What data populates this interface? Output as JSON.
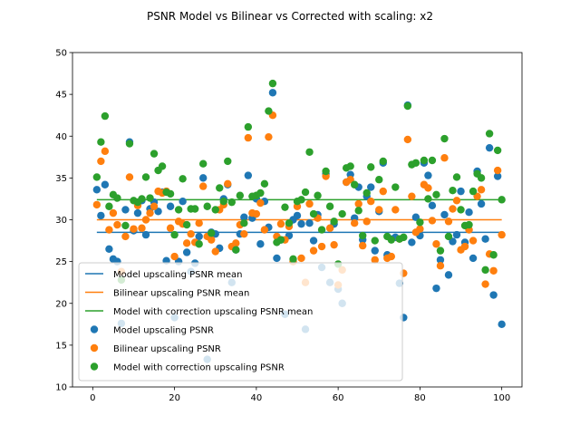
{
  "chart_data": {
    "type": "scatter",
    "title": "PSNR Model vs Bilinear vs Corrected with scaling: x2",
    "xlabel": "",
    "ylabel": "",
    "xlim": [
      -4.95,
      104.95
    ],
    "ylim": [
      10,
      50
    ],
    "xticks": [
      0,
      20,
      40,
      60,
      80,
      100
    ],
    "yticks": [
      10,
      15,
      20,
      25,
      30,
      35,
      40,
      45,
      50
    ],
    "grid": false,
    "legend_position": "lower-left",
    "lines": [
      {
        "name": "Model upscaling PSNR mean",
        "value": 28.5,
        "x_range": [
          1,
          100
        ],
        "color": "#1f77b4"
      },
      {
        "name": "Bilinear upscaling PSNR mean",
        "value": 30.0,
        "x_range": [
          1,
          100
        ],
        "color": "#ff7f0e"
      },
      {
        "name": "Model with correction upscaling PSNR mean",
        "value": 32.4,
        "x_range": [
          1,
          100
        ],
        "color": "#2ca02c"
      }
    ],
    "series": [
      {
        "name": "Model upscaling PSNR",
        "color": "#1f77b4",
        "x": [
          1,
          2,
          3,
          4,
          5,
          6,
          7,
          8,
          9,
          10,
          11,
          12,
          13,
          14,
          15,
          16,
          17,
          18,
          19,
          20,
          21,
          22,
          23,
          24,
          25,
          26,
          27,
          28,
          29,
          30,
          31,
          32,
          33,
          34,
          35,
          36,
          37,
          38,
          39,
          40,
          41,
          42,
          43,
          44,
          45,
          46,
          47,
          48,
          49,
          50,
          51,
          52,
          53,
          54,
          55,
          56,
          57,
          58,
          59,
          60,
          61,
          62,
          63,
          64,
          65,
          66,
          67,
          68,
          69,
          70,
          71,
          72,
          73,
          74,
          75,
          76,
          77,
          78,
          79,
          80,
          81,
          82,
          83,
          84,
          85,
          86,
          87,
          88,
          89,
          90,
          91,
          92,
          93,
          94,
          95,
          96,
          97,
          98,
          99,
          100
        ],
        "y": [
          33.6,
          30.5,
          34.2,
          26.5,
          25.3,
          25.0,
          17.6,
          31.2,
          39.3,
          28.7,
          30.8,
          32.3,
          28.2,
          31.3,
          32.1,
          31.0,
          33.3,
          25.1,
          31.6,
          18.3,
          25.0,
          32.2,
          26.1,
          23.8,
          24.8,
          28.0,
          35.0,
          13.3,
          28.5,
          28.3,
          26.6,
          32.5,
          34.2,
          22.5,
          26.4,
          28.3,
          30.3,
          35.3,
          30.2,
          32.5,
          27.1,
          32.2,
          29.1,
          45.2,
          25.4,
          27.6,
          18.7,
          28.1,
          30.0,
          30.5,
          29.5,
          16.9,
          29.6,
          27.5,
          30.6,
          24.3,
          35.5,
          22.5,
          29.5,
          21.7,
          20.0,
          34.5,
          35.4,
          30.2,
          33.9,
          27.6,
          32.8,
          33.9,
          26.3,
          31.0,
          36.8,
          25.8,
          27.7,
          27.9,
          22.4,
          18.3,
          43.7,
          27.3,
          30.3,
          28.1,
          36.8,
          35.3,
          31.7,
          21.8,
          25.2,
          30.6,
          23.4,
          27.4,
          28.2,
          33.4,
          27.3,
          30.9,
          25.4,
          35.8,
          31.9,
          27.7,
          38.6,
          21.0,
          35.2,
          17.5
        ]
      },
      {
        "name": "Bilinear upscaling PSNR",
        "color": "#ff7f0e",
        "x": [
          1,
          2,
          3,
          4,
          5,
          6,
          7,
          8,
          9,
          10,
          11,
          12,
          13,
          14,
          15,
          16,
          17,
          18,
          19,
          20,
          21,
          22,
          23,
          24,
          25,
          26,
          27,
          28,
          29,
          30,
          31,
          32,
          33,
          34,
          35,
          36,
          37,
          38,
          39,
          40,
          41,
          42,
          43,
          44,
          45,
          46,
          47,
          48,
          49,
          50,
          51,
          52,
          53,
          54,
          55,
          56,
          57,
          58,
          59,
          60,
          61,
          62,
          63,
          64,
          65,
          66,
          67,
          68,
          69,
          70,
          71,
          72,
          73,
          74,
          75,
          76,
          77,
          78,
          79,
          80,
          81,
          82,
          83,
          84,
          85,
          86,
          87,
          88,
          89,
          90,
          91,
          92,
          93,
          94,
          95,
          96,
          97,
          98,
          99,
          100
        ],
        "y": [
          31.8,
          37.0,
          38.2,
          28.8,
          30.8,
          29.4,
          23.8,
          28.0,
          35.1,
          28.9,
          31.7,
          29.0,
          30.0,
          30.8,
          31.6,
          33.4,
          33.2,
          33.4,
          29.0,
          25.6,
          29.8,
          29.5,
          27.2,
          28.3,
          27.3,
          29.6,
          34.0,
          28.0,
          27.6,
          26.2,
          31.2,
          31.8,
          34.3,
          26.8,
          27.2,
          29.4,
          28.3,
          39.8,
          30.8,
          30.7,
          32.0,
          28.8,
          39.9,
          42.5,
          28.0,
          29.5,
          27.6,
          29.2,
          25.0,
          31.6,
          25.4,
          22.5,
          31.9,
          26.3,
          30.2,
          26.8,
          35.2,
          29.0,
          27.0,
          22.2,
          24.0,
          34.5,
          34.8,
          29.6,
          31.9,
          26.9,
          29.8,
          32.2,
          25.2,
          31.2,
          33.4,
          25.4,
          25.6,
          31.2,
          27.7,
          23.6,
          39.6,
          32.8,
          28.5,
          28.9,
          34.2,
          33.8,
          29.9,
          27.1,
          24.5,
          37.4,
          29.8,
          31.3,
          32.3,
          26.4,
          26.8,
          28.8,
          27.5,
          32.8,
          33.6,
          22.3,
          25.9,
          23.9,
          35.9,
          28.2
        ]
      },
      {
        "name": "Model with correction upscaling PSNR",
        "color": "#2ca02c",
        "x": [
          1,
          2,
          3,
          4,
          5,
          6,
          7,
          8,
          9,
          10,
          11,
          12,
          13,
          14,
          15,
          16,
          17,
          18,
          19,
          20,
          21,
          22,
          23,
          24,
          25,
          26,
          27,
          28,
          29,
          30,
          31,
          32,
          33,
          34,
          35,
          36,
          37,
          38,
          39,
          40,
          41,
          42,
          43,
          44,
          45,
          46,
          47,
          48,
          49,
          50,
          51,
          52,
          53,
          54,
          55,
          56,
          57,
          58,
          59,
          60,
          61,
          62,
          63,
          64,
          65,
          66,
          67,
          68,
          69,
          70,
          71,
          72,
          73,
          74,
          75,
          76,
          77,
          78,
          79,
          80,
          81,
          82,
          83,
          84,
          85,
          86,
          87,
          88,
          89,
          90,
          91,
          92,
          93,
          94,
          95,
          96,
          97,
          98,
          99,
          100
        ],
        "y": [
          35.1,
          39.3,
          42.4,
          31.6,
          33.0,
          32.6,
          22.8,
          29.3,
          39.1,
          32.3,
          32.1,
          32.5,
          35.1,
          32.6,
          37.9,
          35.9,
          36.4,
          33.3,
          33.1,
          28.2,
          31.2,
          34.9,
          29.4,
          31.3,
          31.3,
          27.1,
          36.7,
          31.6,
          28.4,
          31.2,
          33.8,
          32.2,
          37.0,
          32.1,
          26.4,
          32.9,
          29.6,
          41.1,
          32.8,
          32.9,
          33.2,
          34.3,
          43.0,
          46.3,
          27.3,
          27.6,
          31.5,
          29.6,
          25.3,
          32.2,
          32.4,
          33.3,
          38.1,
          30.7,
          32.9,
          28.8,
          35.8,
          31.6,
          29.8,
          24.7,
          30.7,
          36.2,
          36.4,
          34.2,
          31.1,
          28.1,
          33.2,
          36.3,
          27.5,
          34.8,
          37.0,
          28.0,
          27.6,
          33.9,
          27.7,
          27.9,
          43.6,
          36.6,
          36.8,
          29.7,
          37.1,
          32.5,
          37.1,
          33.0,
          26.3,
          39.7,
          28.0,
          33.5,
          35.1,
          31.2,
          29.3,
          29.4,
          33.4,
          35.5,
          35.0,
          24.0,
          40.3,
          25.8,
          38.3,
          32.4
        ]
      }
    ]
  }
}
